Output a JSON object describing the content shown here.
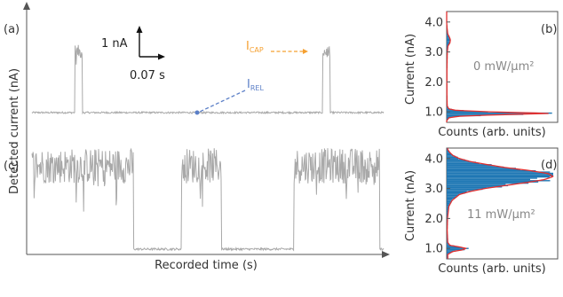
{
  "figure": {
    "y_axis_label": "Detected current (nA)",
    "x_axis_label": "Recorded time (s)"
  },
  "panel_a": {
    "label": "(a)",
    "scale_current": "1 nA",
    "scale_time": "0.07 s",
    "annotations": [
      {
        "text": "I",
        "subscript": "CAP",
        "color": "#f5a030"
      },
      {
        "text": "I",
        "subscript": "REL",
        "color": "#5b7fc7"
      }
    ]
  },
  "panel_c": {
    "label": "(c)"
  },
  "panel_b": {
    "label": "(b)",
    "power": "0 mW/μm²"
  },
  "panel_d": {
    "label": "(d)",
    "power": "11 mW/μm²"
  },
  "chart_data": [
    {
      "panel": "(a)",
      "type": "line",
      "color": "#a9a9a9",
      "ylabel": "Detected current (nA)",
      "xlabel": "Recorded time (s)",
      "levels_nA": {
        "released": 0.95,
        "captured": 3.4
      },
      "scale_bar": {
        "current_nA": 1,
        "time_s": 0.07
      },
      "captured_intervals_fraction_of_trace": [
        [
          0.122,
          0.143
        ],
        [
          0.827,
          0.848
        ]
      ],
      "markers": [
        {
          "name": "I_REL",
          "level_nA": 0.95,
          "color": "#5b7fc7"
        },
        {
          "name": "I_CAP",
          "level_nA": 3.4,
          "color": "#f5a030"
        }
      ]
    },
    {
      "panel": "(c)",
      "type": "line",
      "color": "#a9a9a9",
      "levels_nA": {
        "released": 0.95,
        "captured": 3.3
      },
      "captured_intervals_fraction_of_trace": [
        [
          0.0,
          0.12
        ],
        [
          0.047,
          0.288
        ],
        [
          0.425,
          0.538
        ],
        [
          0.745,
          0.988
        ]
      ]
    },
    {
      "panel": "(b)",
      "type": "bar",
      "orientation": "horizontal",
      "xlabel": "Counts (arb. units)",
      "ylabel": "Current (nA)",
      "ylim": [
        0.65,
        4.35
      ],
      "yticks": [
        "1.0",
        "2.0",
        "3.0",
        "4.0"
      ],
      "y_values": [
        0.7,
        0.8,
        0.85,
        0.9,
        0.95,
        1.0,
        1.05,
        1.1,
        1.2,
        1.5,
        2.0,
        2.5,
        3.0,
        3.2,
        3.3,
        3.4,
        3.5,
        3.6,
        3.8,
        4.0
      ],
      "counts": [
        0.0,
        0.02,
        0.1,
        0.45,
        1.0,
        0.42,
        0.09,
        0.02,
        0.005,
        0.003,
        0.002,
        0.003,
        0.006,
        0.012,
        0.03,
        0.035,
        0.025,
        0.01,
        0.004,
        0.0
      ],
      "fit_color": "#e03030",
      "bar_color": "#1f77b4"
    },
    {
      "panel": "(d)",
      "type": "bar",
      "orientation": "horizontal",
      "xlabel": "Counts (arb. units)",
      "ylabel": "Current (nA)",
      "ylim": [
        0.65,
        4.35
      ],
      "yticks": [
        "1.0",
        "2.0",
        "3.0",
        "4.0"
      ],
      "y_values": [
        0.8,
        0.9,
        0.95,
        1.0,
        1.05,
        1.1,
        1.2,
        1.6,
        2.0,
        2.4,
        2.6,
        2.8,
        2.9,
        3.0,
        3.1,
        3.2,
        3.3,
        3.4,
        3.5,
        3.6,
        3.7,
        3.8,
        3.9,
        4.0,
        4.1,
        4.2,
        4.3
      ],
      "counts": [
        0.01,
        0.06,
        0.15,
        0.18,
        0.12,
        0.03,
        0.01,
        0.005,
        0.008,
        0.02,
        0.05,
        0.12,
        0.22,
        0.36,
        0.55,
        0.75,
        0.92,
        1.0,
        0.95,
        0.78,
        0.55,
        0.38,
        0.22,
        0.12,
        0.06,
        0.03,
        0.01
      ],
      "fit_color": "#e03030",
      "bar_color": "#1f77b4"
    }
  ]
}
